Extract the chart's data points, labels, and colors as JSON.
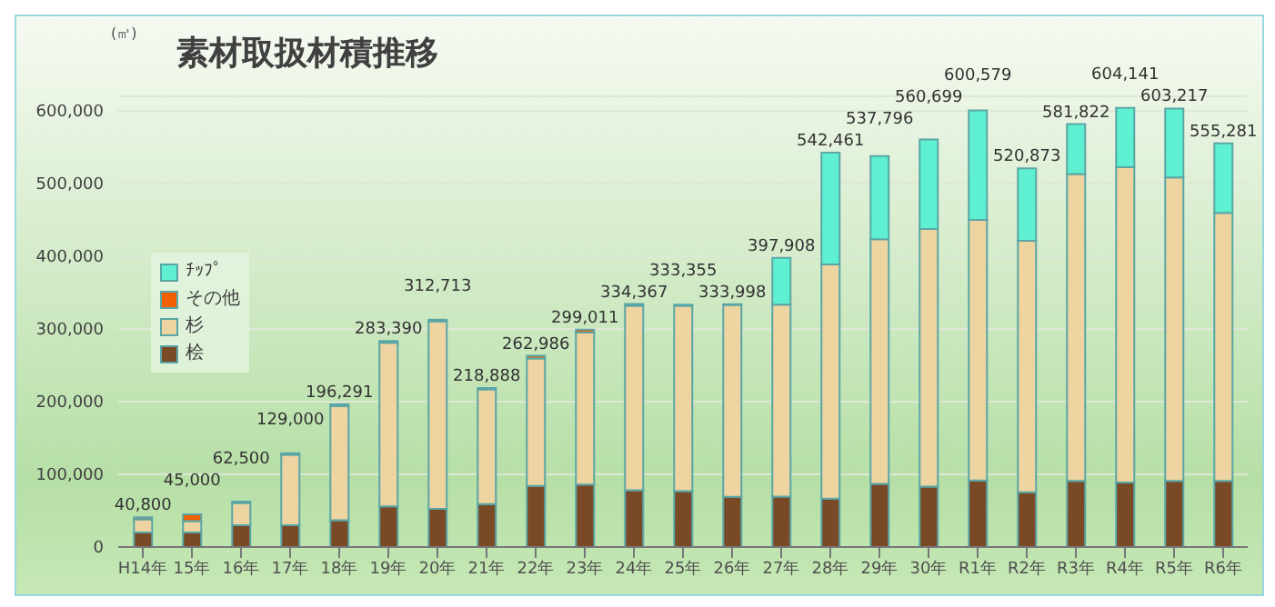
{
  "chart_data": {
    "type": "bar",
    "title": "素材取扱材積推移",
    "ylabel": "(㎥)",
    "stacked": true,
    "categories": [
      "H14年",
      "15年",
      "16年",
      "17年",
      "18年",
      "19年",
      "20年",
      "21年",
      "22年",
      "23年",
      "24年",
      "25年",
      "26年",
      "27年",
      "28年",
      "29年",
      "30年",
      "R1年",
      "R2年",
      "R3年",
      "R4年",
      "R5年",
      "R6年"
    ],
    "series": [
      {
        "name": "桧",
        "color": "#7a4a26",
        "values": [
          20000,
          20000,
          30000,
          30000,
          37000,
          56000,
          52500,
          59000,
          84000,
          86000,
          78000,
          77000,
          69000,
          69500,
          66500,
          87000,
          83000,
          91600,
          75400,
          91000,
          88700,
          91000,
          91000
        ]
      },
      {
        "name": "杉",
        "color": "#edd4a0",
        "values": [
          18000,
          15500,
          30600,
          97000,
          157000,
          225000,
          258000,
          158000,
          175500,
          209000,
          254000,
          255000,
          264000,
          263800,
          322300,
          336500,
          354500,
          358400,
          345900,
          422000,
          433800,
          417500,
          368700
        ]
      },
      {
        "name": "その他",
        "color": "#f06000",
        "values": [
          2800,
          9500,
          1900,
          2000,
          2291,
          2390,
          2213,
          1888,
          3486,
          4011,
          2367,
          1355,
          998,
          null,
          null,
          null,
          null,
          null,
          null,
          null,
          null,
          null,
          null
        ]
      },
      {
        "name": "ﾁｯﾌﾟ",
        "color": "#5ef0d0",
        "values": [
          null,
          null,
          null,
          null,
          null,
          null,
          null,
          null,
          null,
          null,
          null,
          null,
          null,
          64608,
          153661,
          114296,
          123199,
          150579,
          99573,
          68822,
          81641,
          94717,
          95581
        ]
      }
    ],
    "totals": [
      "40,800",
      "45,000",
      "62,500",
      "129,000",
      "196,291",
      "283,390",
      "312,713",
      "218,888",
      "262,986",
      "299,011",
      "334,367",
      "333,355",
      "333,998",
      "397,908",
      "542,461",
      "537,796",
      "560,699",
      "600,579",
      "520,873",
      "581,822",
      "604,141",
      "603,217",
      "555,281"
    ],
    "ylim": [
      0,
      620000
    ],
    "yticks": [
      0,
      {
        "value": 100000,
        "label": "100,000"
      },
      {
        "value": 200000,
        "label": "200,000"
      },
      {
        "value": 300000,
        "label": "300,000"
      },
      {
        "value": 400000,
        "label": "400,000"
      },
      {
        "value": 500000,
        "label": "500,000"
      },
      {
        "value": 600000,
        "label": "600,000"
      }
    ],
    "grid": "y",
    "legend": "top left"
  }
}
